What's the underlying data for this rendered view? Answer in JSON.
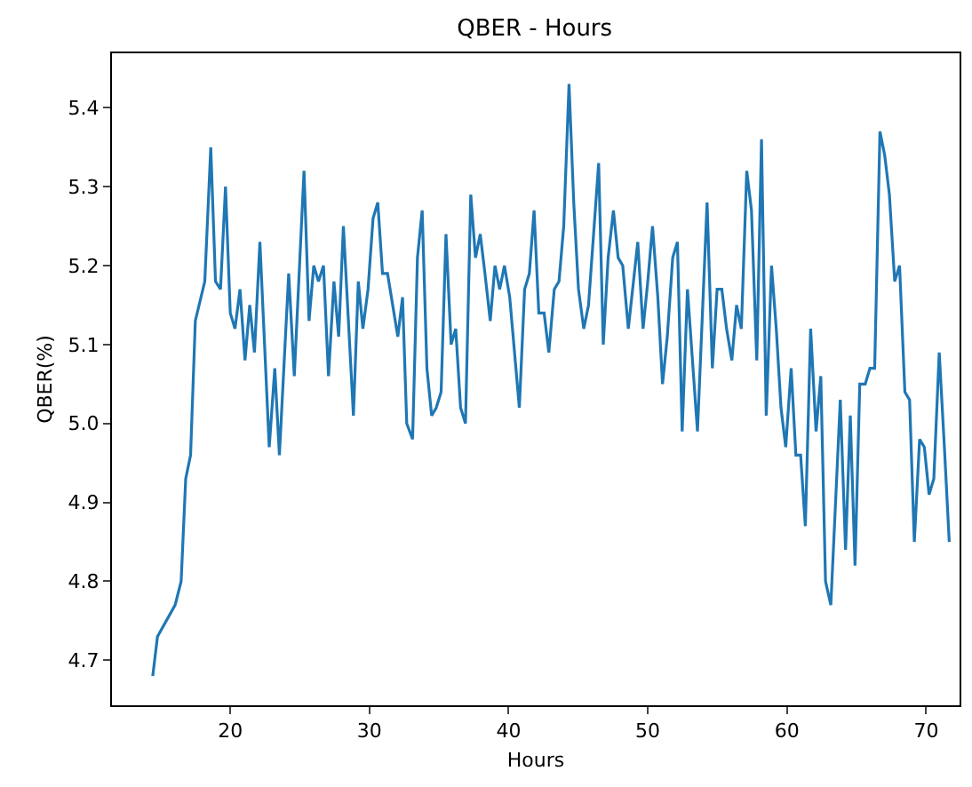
{
  "chart_data": {
    "type": "line",
    "title": "QBER - Hours",
    "xlabel": "Hours",
    "ylabel": "QBER(%)",
    "x": [
      14.43,
      14.77,
      16.04,
      16.47,
      16.8,
      17.15,
      17.49,
      18.17,
      18.6,
      18.94,
      19.3,
      19.66,
      20.0,
      20.34,
      20.7,
      21.06,
      21.4,
      21.74,
      22.13,
      22.8,
      23.2,
      23.53,
      24.2,
      24.6,
      25.3,
      25.66,
      26.0,
      26.34,
      26.7,
      27.06,
      27.45,
      27.79,
      28.13,
      28.85,
      29.2,
      29.53,
      29.9,
      30.26,
      30.6,
      30.94,
      31.3,
      32.04,
      32.38,
      32.68,
      33.1,
      33.45,
      33.79,
      34.13,
      34.47,
      34.8,
      35.15,
      35.5,
      35.87,
      36.2,
      36.55,
      36.9,
      37.28,
      37.62,
      37.96,
      38.3,
      38.68,
      39.02,
      39.36,
      39.7,
      40.08,
      40.77,
      41.15,
      41.49,
      41.83,
      42.17,
      42.55,
      42.89,
      43.28,
      43.62,
      43.96,
      44.34,
      44.68,
      45.02,
      45.4,
      45.74,
      46.47,
      46.8,
      47.15,
      47.53,
      47.87,
      48.2,
      48.6,
      49.28,
      49.66,
      50.0,
      50.34,
      50.72,
      51.06,
      51.4,
      51.79,
      52.13,
      52.47,
      52.85,
      53.57,
      54.26,
      54.64,
      54.98,
      55.32,
      55.66,
      56.04,
      56.38,
      56.72,
      57.11,
      57.45,
      57.83,
      58.17,
      58.51,
      58.89,
      59.23,
      59.57,
      59.91,
      60.3,
      60.64,
      60.98,
      61.32,
      61.7,
      62.09,
      62.43,
      62.77,
      63.15,
      63.83,
      64.21,
      64.55,
      64.89,
      65.23,
      65.62,
      65.96,
      66.3,
      66.68,
      67.02,
      67.36,
      67.74,
      68.09,
      68.47,
      68.81,
      69.15,
      69.53,
      69.87,
      70.21,
      70.55,
      70.94,
      71.28,
      71.66
    ],
    "series": [
      {
        "color": "#1f77b4",
        "values": [
          4.68,
          4.73,
          4.77,
          4.8,
          4.93,
          4.96,
          5.13,
          5.18,
          5.35,
          5.18,
          5.17,
          5.3,
          5.14,
          5.12,
          5.17,
          5.08,
          5.15,
          5.09,
          5.23,
          4.97,
          5.07,
          4.96,
          5.19,
          5.06,
          5.32,
          5.13,
          5.2,
          5.18,
          5.2,
          5.06,
          5.18,
          5.11,
          5.25,
          5.01,
          5.18,
          5.12,
          5.17,
          5.26,
          5.28,
          5.19,
          5.19,
          5.11,
          5.16,
          5.0,
          4.98,
          5.21,
          5.27,
          5.07,
          5.01,
          5.02,
          5.04,
          5.24,
          5.1,
          5.12,
          5.02,
          5.0,
          5.29,
          5.21,
          5.24,
          5.19,
          5.13,
          5.2,
          5.17,
          5.2,
          5.16,
          5.02,
          5.17,
          5.19,
          5.27,
          5.14,
          5.14,
          5.09,
          5.17,
          5.18,
          5.25,
          5.43,
          5.28,
          5.17,
          5.12,
          5.15,
          5.33,
          5.1,
          5.21,
          5.27,
          5.21,
          5.2,
          5.12,
          5.23,
          5.12,
          5.18,
          5.25,
          5.16,
          5.05,
          5.11,
          5.21,
          5.23,
          4.99,
          5.17,
          4.99,
          5.28,
          5.07,
          5.17,
          5.17,
          5.12,
          5.08,
          5.15,
          5.12,
          5.32,
          5.27,
          5.08,
          5.36,
          5.01,
          5.2,
          5.12,
          5.02,
          4.97,
          5.07,
          4.96,
          4.96,
          4.87,
          5.12,
          4.99,
          5.06,
          4.8,
          4.77,
          5.03,
          4.84,
          5.01,
          4.82,
          5.05,
          5.05,
          5.07,
          5.07,
          5.37,
          5.34,
          5.29,
          5.18,
          5.2,
          5.04,
          5.03,
          4.85,
          4.98,
          4.97,
          4.91,
          4.93,
          5.09,
          4.98,
          4.85
        ]
      }
    ],
    "xlim": [
      11.5,
      72.4
    ],
    "xticks": [
      20,
      30,
      40,
      50,
      60,
      70
    ],
    "ylim": [
      4.643,
      5.469
    ],
    "yticks": [
      4.7,
      4.8,
      4.9,
      {
        "value": 5,
        "label": "5.0"
      },
      5.1,
      5.2,
      5.3,
      5.4
    ],
    "grid": false,
    "marker": "none",
    "line_style": "solid"
  }
}
